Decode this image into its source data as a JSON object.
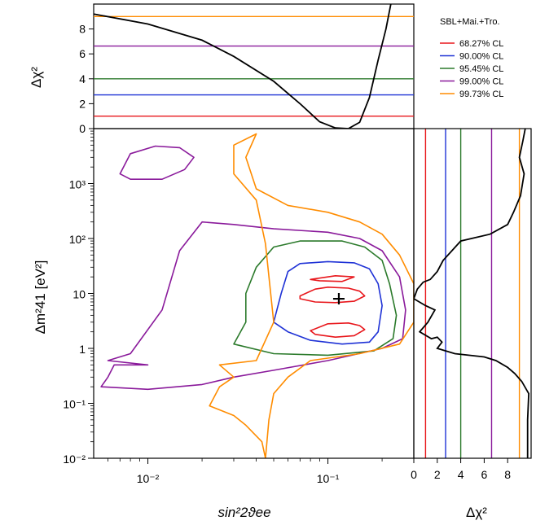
{
  "chart_data": [
    {
      "type": "line",
      "panel": "top",
      "ylabel": "Δχ²",
      "xscale": "log",
      "xlim": [
        0.005,
        0.3
      ],
      "ylim": [
        0,
        10
      ],
      "yticks": [
        "0",
        "2",
        "4",
        "6",
        "8"
      ],
      "curve": [
        [
          0.005,
          9.2
        ],
        [
          0.01,
          8.4
        ],
        [
          0.02,
          7.1
        ],
        [
          0.03,
          5.8
        ],
        [
          0.05,
          3.8
        ],
        [
          0.07,
          2.0
        ],
        [
          0.09,
          0.55
        ],
        [
          0.11,
          0.05
        ],
        [
          0.13,
          0.0
        ],
        [
          0.15,
          0.5
        ],
        [
          0.17,
          2.5
        ],
        [
          0.19,
          5.5
        ],
        [
          0.21,
          8.0
        ],
        [
          0.225,
          10.2
        ]
      ],
      "cl_lines": [
        {
          "name": "68.27% CL",
          "value": 1.0,
          "color": "#e8161b"
        },
        {
          "name": "90.00% CL",
          "value": 2.71,
          "color": "#1f32d6"
        },
        {
          "name": "95.45% CL",
          "value": 4.0,
          "color": "#2b7a2b"
        },
        {
          "name": "99.00% CL",
          "value": 6.63,
          "color": "#8a1a9b"
        },
        {
          "name": "99.73% CL",
          "value": 9.0,
          "color": "#ff8c00"
        }
      ]
    },
    {
      "type": "contour",
      "panel": "main",
      "xlabel": "sin²2ϑee",
      "ylabel": "Δm²41 [eV²]",
      "xscale": "log",
      "yscale": "log",
      "xlim": [
        0.005,
        0.3
      ],
      "ylim": [
        0.01,
        10000
      ],
      "xticks": [
        {
          "v": 0.01,
          "label": "10⁻²"
        },
        {
          "v": 0.1,
          "label": "10⁻¹"
        }
      ],
      "yticks": [
        {
          "v": 0.01,
          "label": "10⁻²"
        },
        {
          "v": 0.1,
          "label": "10⁻¹"
        },
        {
          "v": 1,
          "label": "1"
        },
        {
          "v": 10,
          "label": "10"
        },
        {
          "v": 100,
          "label": "10²"
        },
        {
          "v": 1000,
          "label": "10³"
        }
      ],
      "best_fit": [
        0.115,
        8
      ],
      "contours": [
        {
          "cl": "68.27% CL",
          "color": "#e8161b",
          "regions": [
            [
              [
                0.07,
                9
              ],
              [
                0.085,
                12
              ],
              [
                0.1,
                13
              ],
              [
                0.13,
                12.5
              ],
              [
                0.15,
                11
              ],
              [
                0.16,
                9
              ],
              [
                0.14,
                7.2
              ],
              [
                0.11,
                6.8
              ],
              [
                0.085,
                7
              ],
              [
                0.07,
                8
              ]
            ],
            [
              [
                0.08,
                2.1
              ],
              [
                0.1,
                2.8
              ],
              [
                0.13,
                2.9
              ],
              [
                0.15,
                2.6
              ],
              [
                0.16,
                2.2
              ],
              [
                0.14,
                1.7
              ],
              [
                0.11,
                1.6
              ],
              [
                0.085,
                1.8
              ]
            ],
            [
              [
                0.08,
                18
              ],
              [
                0.11,
                21
              ],
              [
                0.14,
                20
              ],
              [
                0.12,
                16.5
              ],
              [
                0.09,
                17
              ]
            ]
          ]
        },
        {
          "cl": "90.00% CL",
          "color": "#1f32d6",
          "regions": [
            [
              [
                0.05,
                3
              ],
              [
                0.055,
                10
              ],
              [
                0.06,
                25
              ],
              [
                0.07,
                35
              ],
              [
                0.1,
                38
              ],
              [
                0.14,
                36
              ],
              [
                0.17,
                28
              ],
              [
                0.19,
                15
              ],
              [
                0.2,
                6
              ],
              [
                0.19,
                2
              ],
              [
                0.17,
                1.3
              ],
              [
                0.12,
                1.2
              ],
              [
                0.08,
                1.4
              ],
              [
                0.06,
                2
              ]
            ]
          ]
        },
        {
          "cl": "95.45% CL",
          "color": "#2b7a2b",
          "regions": [
            [
              [
                0.03,
                1.2
              ],
              [
                0.035,
                3
              ],
              [
                0.035,
                10
              ],
              [
                0.04,
                30
              ],
              [
                0.05,
                70
              ],
              [
                0.07,
                90
              ],
              [
                0.12,
                90
              ],
              [
                0.16,
                70
              ],
              [
                0.2,
                40
              ],
              [
                0.22,
                15
              ],
              [
                0.24,
                4
              ],
              [
                0.23,
                1.5
              ],
              [
                0.18,
                0.9
              ],
              [
                0.1,
                0.75
              ],
              [
                0.05,
                0.8
              ]
            ]
          ]
        },
        {
          "cl": "99.00% CL",
          "color": "#8a1a9b",
          "regions": [
            [
              [
                0.0055,
                0.2
              ],
              [
                0.006,
                0.3
              ],
              [
                0.0065,
                0.5
              ],
              [
                0.01,
                0.5
              ],
              [
                0.006,
                0.6
              ],
              [
                0.008,
                0.8
              ],
              [
                0.012,
                5
              ],
              [
                0.015,
                60
              ],
              [
                0.02,
                200
              ],
              [
                0.03,
                180
              ],
              [
                0.05,
                150
              ],
              [
                0.1,
                130
              ],
              [
                0.15,
                100
              ],
              [
                0.2,
                60
              ],
              [
                0.25,
                20
              ],
              [
                0.27,
                5
              ],
              [
                0.26,
                1.5
              ],
              [
                0.2,
                1
              ],
              [
                0.1,
                0.6
              ],
              [
                0.05,
                0.4
              ],
              [
                0.03,
                0.3
              ],
              [
                0.02,
                0.22
              ],
              [
                0.01,
                0.18
              ]
            ],
            [
              [
                0.007,
                1500
              ],
              [
                0.008,
                3500
              ],
              [
                0.011,
                4800
              ],
              [
                0.015,
                4500
              ],
              [
                0.018,
                3000
              ],
              [
                0.016,
                1800
              ],
              [
                0.012,
                1200
              ],
              [
                0.008,
                1200
              ]
            ]
          ]
        },
        {
          "cl": "99.73% CL",
          "color": "#ff8c00",
          "regions": [
            [
              [
                0.045,
                0.01
              ],
              [
                0.043,
                0.02
              ],
              [
                0.035,
                0.04
              ],
              [
                0.03,
                0.06
              ],
              [
                0.022,
                0.09
              ],
              [
                0.025,
                0.2
              ],
              [
                0.03,
                0.3
              ],
              [
                0.025,
                0.5
              ],
              [
                0.04,
                0.6
              ],
              [
                0.05,
                3
              ],
              [
                0.045,
                80
              ],
              [
                0.04,
                500
              ],
              [
                0.03,
                1500
              ],
              [
                0.03,
                5000
              ],
              [
                0.04,
                8000
              ],
              [
                0.035,
                3000
              ],
              [
                0.04,
                800
              ],
              [
                0.06,
                400
              ],
              [
                0.1,
                300
              ],
              [
                0.15,
                200
              ],
              [
                0.2,
                120
              ],
              [
                0.25,
                50
              ],
              [
                0.3,
                15
              ],
              [
                0.3,
                3
              ],
              [
                0.25,
                1.2
              ],
              [
                0.15,
                0.8
              ],
              [
                0.08,
                0.6
              ],
              [
                0.06,
                0.3
              ],
              [
                0.05,
                0.15
              ],
              [
                0.047,
                0.05
              ]
            ]
          ]
        }
      ]
    },
    {
      "type": "line",
      "panel": "right",
      "xlabel": "Δχ²",
      "xlim": [
        0,
        10
      ],
      "xticks": [
        "0",
        "2",
        "4",
        "6",
        "8"
      ],
      "curve": [
        [
          9.5,
          10000
        ],
        [
          9.3,
          6000
        ],
        [
          9.0,
          3000
        ],
        [
          9.4,
          1500
        ],
        [
          9.1,
          600
        ],
        [
          8.5,
          300
        ],
        [
          8.0,
          180
        ],
        [
          6.5,
          120
        ],
        [
          4.0,
          90
        ],
        [
          2.5,
          40
        ],
        [
          2.0,
          25
        ],
        [
          1.4,
          18
        ],
        [
          0.8,
          16
        ],
        [
          0.3,
          12
        ],
        [
          0.0,
          8
        ],
        [
          1.0,
          6
        ],
        [
          1.8,
          5
        ],
        [
          1.2,
          3
        ],
        [
          0.5,
          2
        ],
        [
          1.5,
          1.5
        ],
        [
          2.0,
          1.6
        ],
        [
          2.4,
          1.3
        ],
        [
          2.0,
          1.0
        ],
        [
          3.5,
          0.8
        ],
        [
          6.0,
          0.7
        ],
        [
          7.0,
          0.6
        ],
        [
          8.0,
          0.45
        ],
        [
          8.6,
          0.35
        ],
        [
          9.2,
          0.25
        ],
        [
          9.8,
          0.15
        ],
        [
          9.7,
          0.05
        ],
        [
          9.7,
          0.01
        ]
      ],
      "cl_lines": [
        1.0,
        2.71,
        4.0,
        6.63,
        9.0
      ]
    }
  ],
  "legend": {
    "title": "SBL+Mai.+Tro.",
    "items": [
      "68.27% CL",
      "90.00% CL",
      "95.45% CL",
      "99.00% CL",
      "99.73% CL"
    ]
  },
  "labels": {
    "top_ylabel": "Δχ²",
    "main_xlabel": "sin²2ϑee",
    "main_ylabel": "Δm²41 [eV²]",
    "right_xlabel": "Δχ²"
  }
}
